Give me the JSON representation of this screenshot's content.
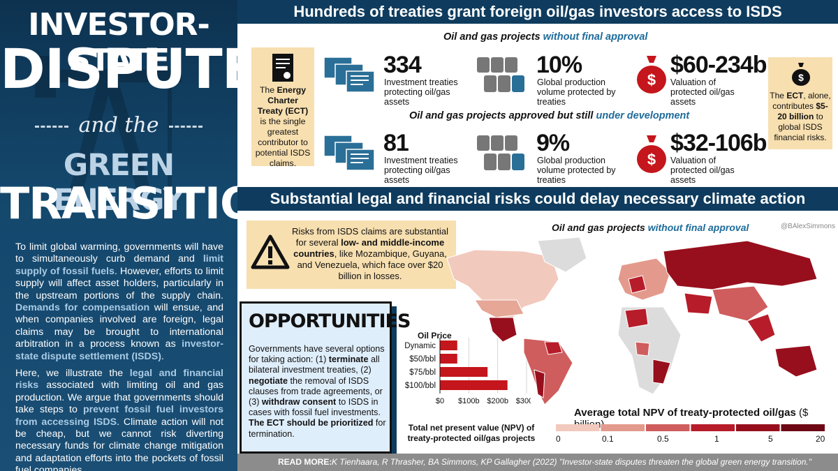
{
  "left": {
    "title_line1": "INVESTOR-STATE",
    "title_line2": "DISPUTES",
    "title_and": "and the",
    "title_line3": "GREEN ENERGY",
    "title_line4": "TRANSITION",
    "p1": [
      {
        "t": "To limit global warming, governments will have to simultaneously curb demand and ",
        "b": false
      },
      {
        "t": "limit supply of fossil fuels",
        "b": true
      },
      {
        "t": ". However, efforts to limit supply will affect asset holders, particularly in the upstream portions of the supply chain. ",
        "b": false
      },
      {
        "t": "Demands for compensation",
        "b": true
      },
      {
        "t": " will ensue, and when companies involved are foreign, legal claims may be brought to international arbitration in a process known as ",
        "b": false
      },
      {
        "t": "investor-state dispute settlement (ISDS)",
        "b": true
      },
      {
        "t": ".",
        "b": false
      }
    ],
    "p2": [
      {
        "t": "Here, we illustrate the ",
        "b": false
      },
      {
        "t": "legal and financial risks",
        "b": true
      },
      {
        "t": " associated with limiting oil and gas production. We argue that governments should take steps to ",
        "b": false
      },
      {
        "t": "prevent fossil fuel investors from accessing ISDS",
        "b": true
      },
      {
        "t": ". Climate action will not be cheap, but we cannot risk diverting necessary funds for climate change mitigation and adaptation efforts into the pockets of fossil fuel companies.",
        "b": false
      }
    ]
  },
  "top": {
    "banner": "Hundreds of treaties grant foreign oil/gas investors access to ISDS",
    "sub1_a": "Oil and gas projects ",
    "sub1_b": "without final approval",
    "sub2_a": "Oil and gas projects approved but still ",
    "sub2_b": "under development",
    "ect_note": [
      {
        "t": "The ",
        "b": false
      },
      {
        "t": "Energy Charter Treaty (ECT)",
        "b": true
      },
      {
        "t": " is the single greatest contributor to potential ISDS claims.",
        "b": false
      }
    ],
    "ect_right": [
      {
        "t": "The ",
        "b": false
      },
      {
        "t": "ECT",
        "b": true
      },
      {
        "t": ", alone, contributes ",
        "b": false
      },
      {
        "t": "$5-20 billion",
        "b": true
      },
      {
        "t": " to global ISDS financial risks.",
        "b": false
      }
    ],
    "row1": {
      "treaties": "334",
      "treaties_lbl": "Investment treaties protecting oil/gas assets",
      "volume": "10%",
      "volume_lbl": "Global production volume protected by treaties",
      "value": "$60-234b",
      "value_lbl": "Valuation of protected oil/gas assets"
    },
    "row2": {
      "treaties": "81",
      "treaties_lbl": "Investment treaties protecting oil/gas assets",
      "volume": "9%",
      "volume_lbl": "Global production volume protected by treaties",
      "value": "$32-106b",
      "value_lbl": "Valuation of protected oil/gas assets"
    }
  },
  "bottom": {
    "banner": "Substantial legal and financial risks could delay necessary climate action",
    "warning": [
      {
        "t": "Risks from ISDS claims are substantial for several ",
        "b": false
      },
      {
        "t": "low- and middle-income countries",
        "b": true
      },
      {
        "t": ", like Mozambique, Guyana, and Venezuela, which face over $20 billion in losses.",
        "b": false
      }
    ],
    "opp_title": "OPPORTUNITIES",
    "opp_text": [
      {
        "t": "Governments have several options for taking action: (1) ",
        "b": false
      },
      {
        "t": "terminate",
        "b": true
      },
      {
        "t": " all bilateral investment treaties, (2) ",
        "b": false
      },
      {
        "t": "negotiate",
        "b": true
      },
      {
        "t": " the removal of ISDS clauses from trade agreements, or (3) ",
        "b": false
      },
      {
        "t": "withdraw consent",
        "b": true
      },
      {
        "t": " to ISDS in cases with fossil fuel investments. ",
        "b": false
      },
      {
        "t": "The ECT should be prioritized",
        "b": true
      },
      {
        "t": " for termination.",
        "b": false
      }
    ],
    "map_sub_a": "Oil and gas projects ",
    "map_sub_b": "without final approval",
    "credit": "@BAlexSimmons",
    "legend_title": "Average total NPV of treaty-protected oil/gas",
    "legend_unit": " ($ billion)",
    "legend_ticks": [
      "0",
      "0.1",
      "0.5",
      "1",
      "5",
      "20"
    ],
    "legend_colors": [
      "#f2c9bd",
      "#e39a8c",
      "#cf5d5d",
      "#b71c2a",
      "#970f1d",
      "#6c0713"
    ]
  },
  "chart_data": {
    "type": "bar",
    "orientation": "horizontal",
    "title": "Oil Price",
    "categories": [
      "Dynamic",
      "$50/bbl",
      "$75/bbl",
      "$100/bbl"
    ],
    "values": [
      60,
      60,
      165,
      234
    ],
    "xlim": [
      0,
      300
    ],
    "xticks": [
      "$0",
      "$100b",
      "$200b",
      "$300b"
    ],
    "xlabel": "Total net present value (NPV) of treaty-protected oil/gas projects",
    "bar_color": "#c4161c",
    "grid": true
  },
  "footer": {
    "label": "READ MORE:",
    "ref": "K Tienhaara, R Thrasher, BA Simmons, KP Gallagher (2022) \"Investor-state disputes threaten the global green energy transition.\" Science."
  }
}
